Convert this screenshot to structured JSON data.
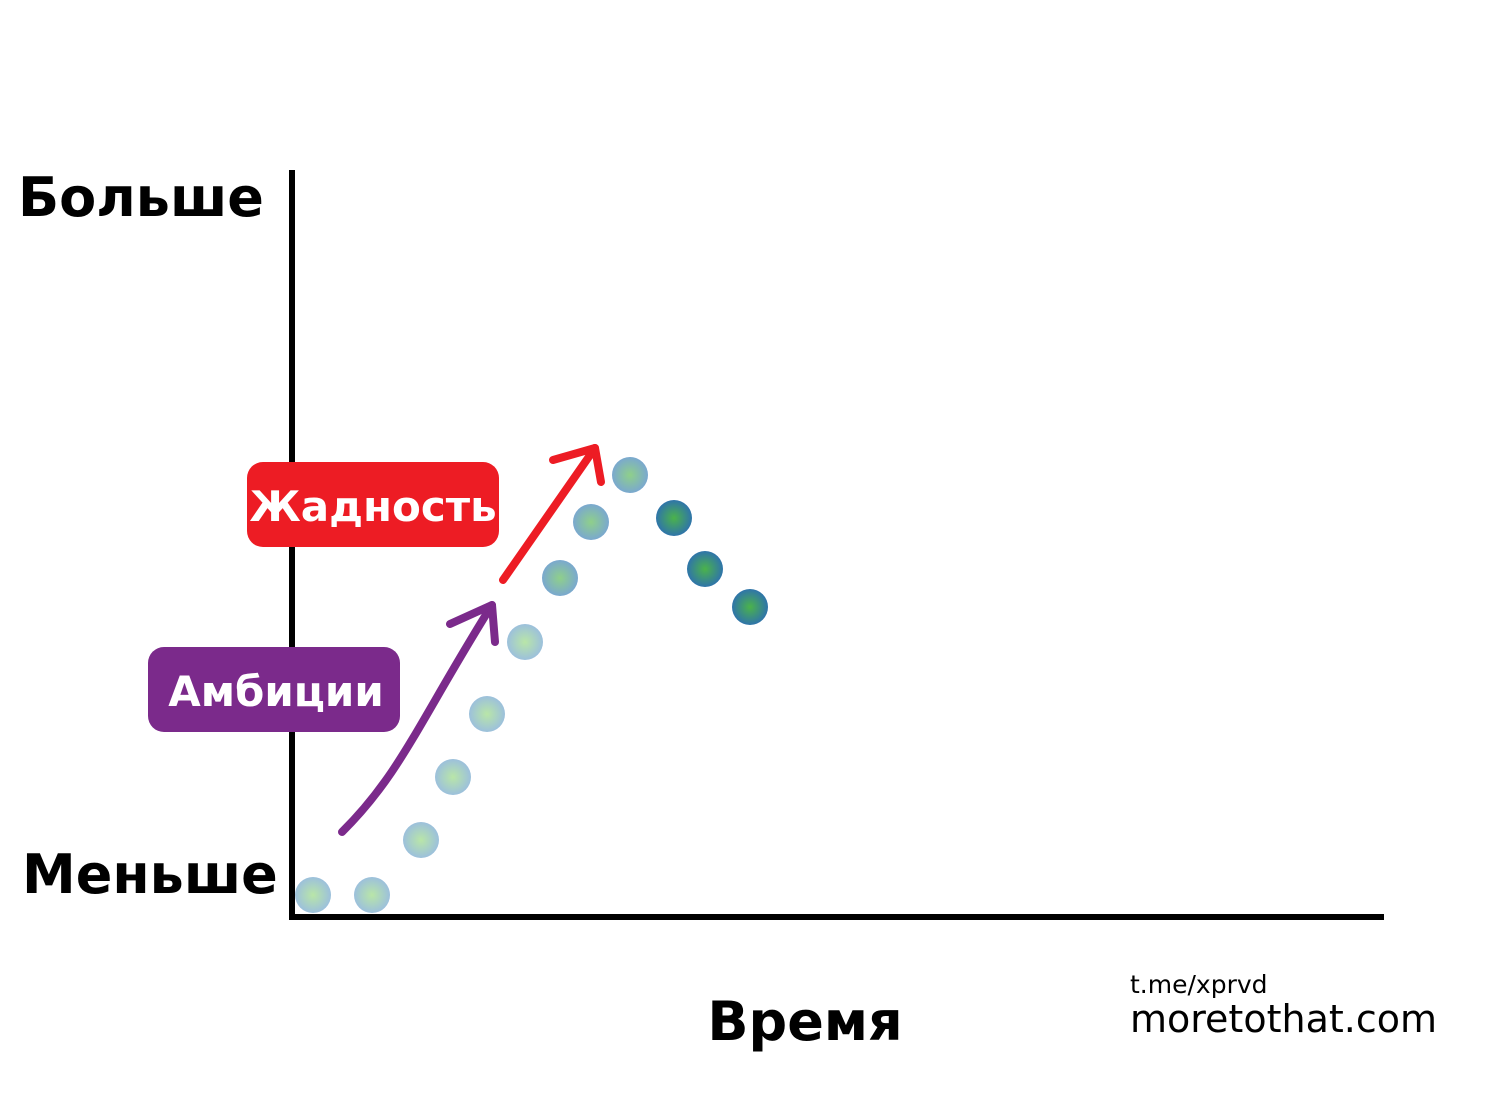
{
  "y_axis": {
    "top_label": "Больше",
    "bottom_label": "Меньше"
  },
  "x_axis": {
    "label": "Время"
  },
  "tags": {
    "greed": "Жадность",
    "ambition": "Амбиции"
  },
  "credits": {
    "telegram": "t.me/xprvd",
    "site": "moretothat.com"
  }
}
